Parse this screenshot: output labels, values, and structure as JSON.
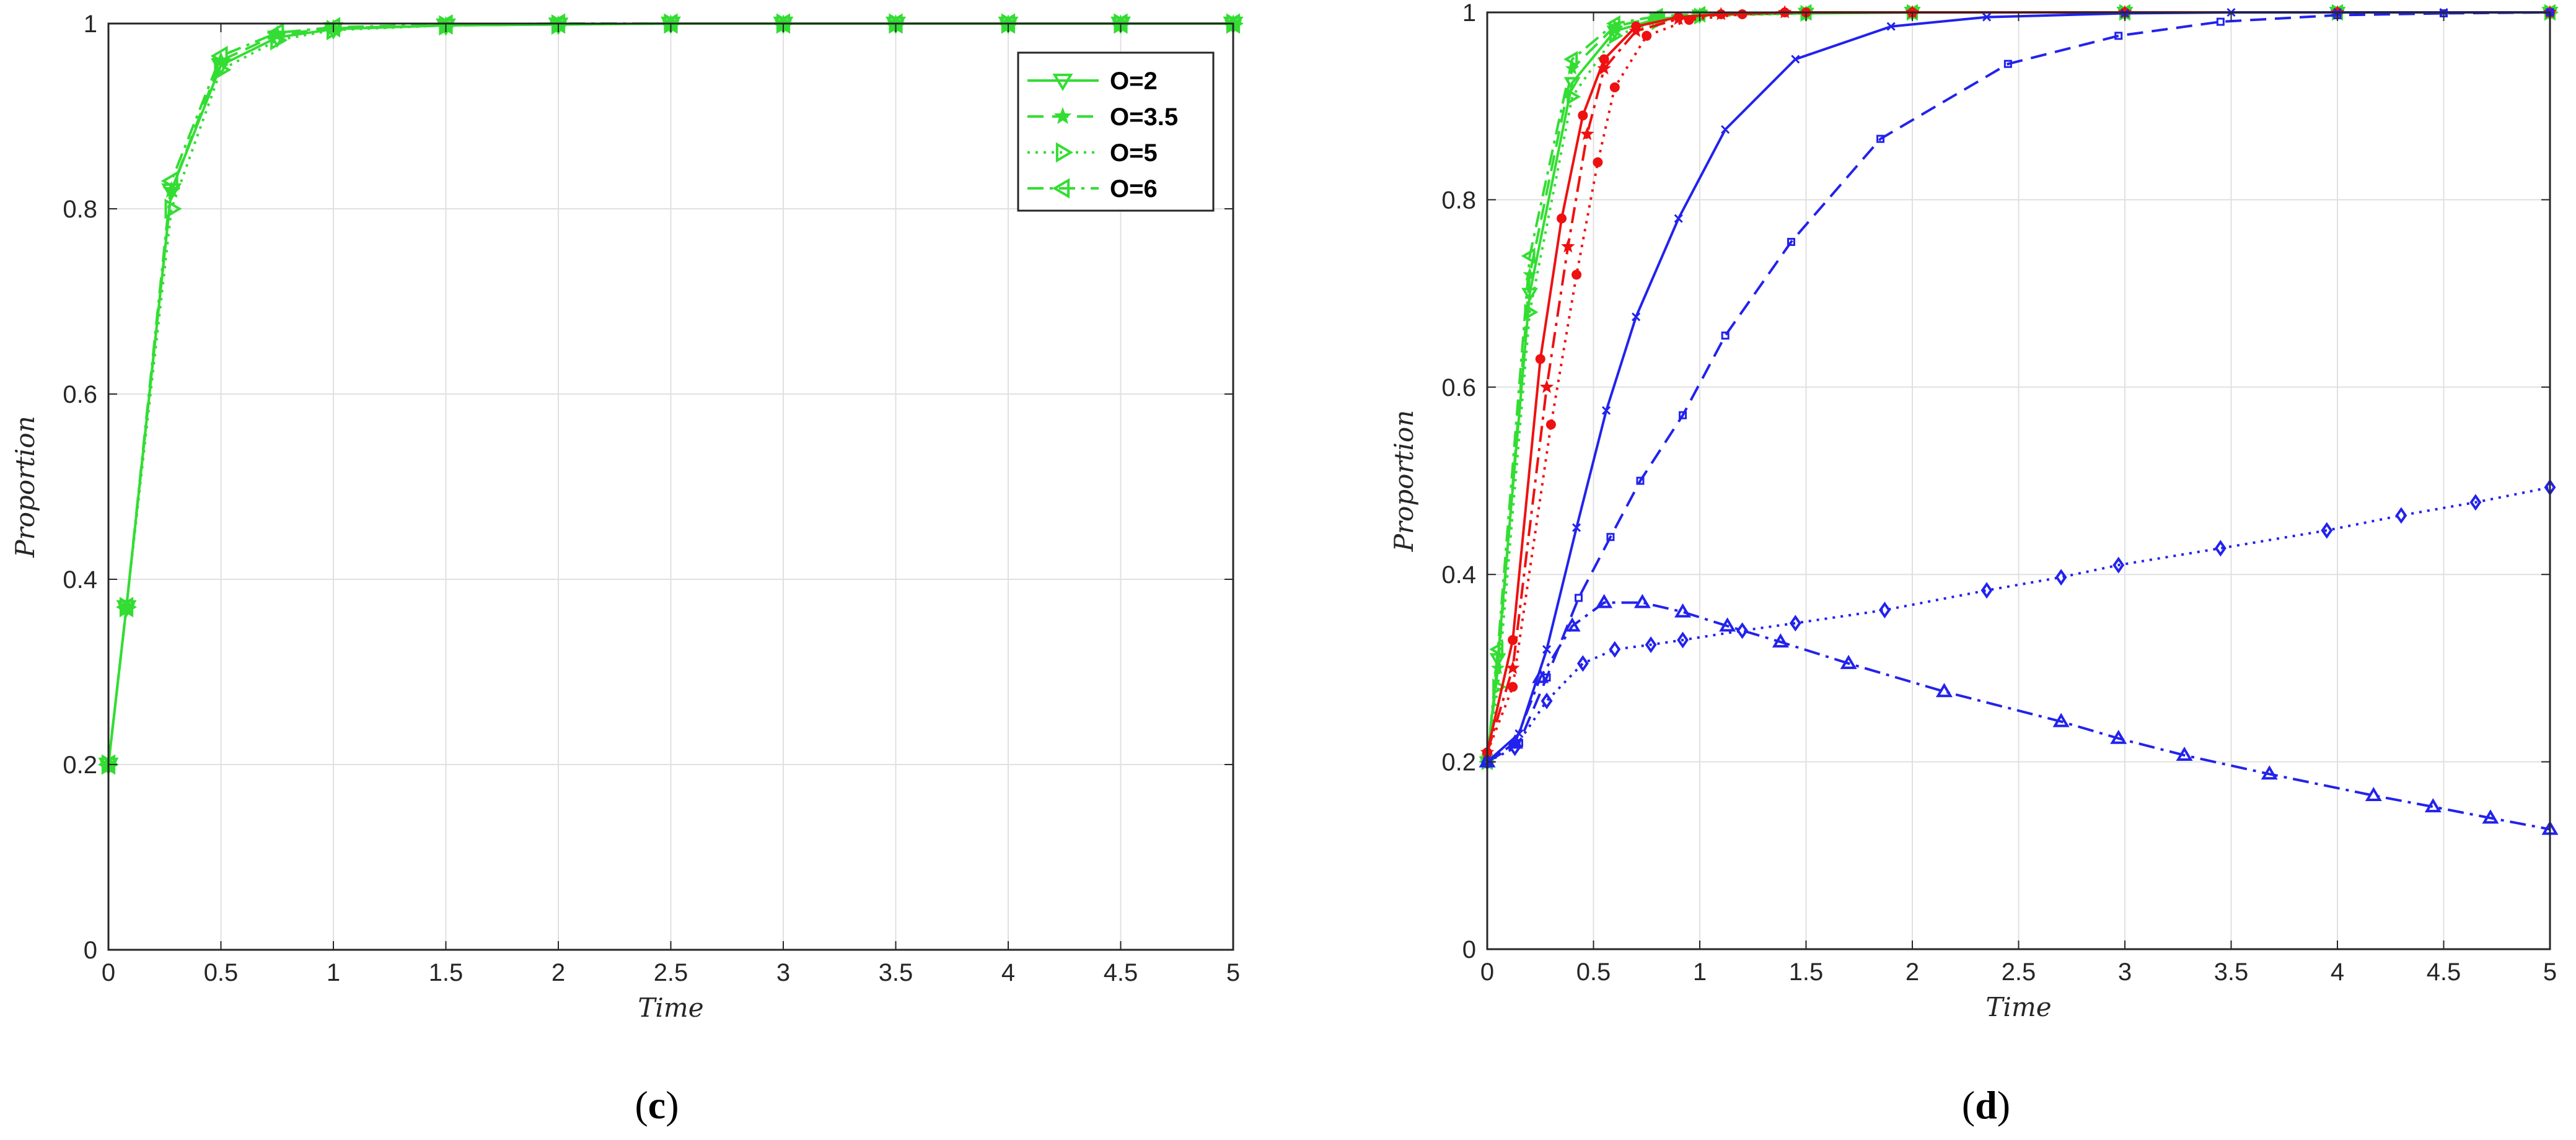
{
  "panels": [
    {
      "label_open": "(",
      "label_letter": "c",
      "label_close": ")"
    },
    {
      "label_open": "(",
      "label_letter": "d",
      "label_close": ")"
    }
  ],
  "colors": {
    "green": "#33dd33",
    "red": "#ee1111",
    "blue": "#2222ee",
    "grid": "#e0e0e0",
    "axis": "#262626"
  },
  "chart_data": [
    {
      "type": "line",
      "title": "",
      "xlabel": "Time",
      "ylabel": "Proportion",
      "xlim": [
        0,
        5
      ],
      "ylim": [
        0,
        1
      ],
      "xticks": [
        "0",
        "0.5",
        "1",
        "1.5",
        "2",
        "2.5",
        "3",
        "3.5",
        "4",
        "4.5",
        "5"
      ],
      "yticks": [
        "0",
        "0.2",
        "0.4",
        "0.6",
        "0.8",
        "1"
      ],
      "grid": true,
      "legend_position": "top-right",
      "series": [
        {
          "name": "O=2",
          "color": "#33dd33",
          "dash": "solid",
          "marker": "triangle-down",
          "x": [
            0,
            0.08,
            0.28,
            0.5,
            0.75,
            1.0,
            1.5,
            2.0,
            2.5,
            3.0,
            3.5,
            4.0,
            4.5,
            5.0
          ],
          "y": [
            0.2,
            0.37,
            0.82,
            0.955,
            0.985,
            0.994,
            0.998,
            0.999,
            1.0,
            1.0,
            1.0,
            1.0,
            1.0,
            1.0
          ]
        },
        {
          "name": "O=3.5",
          "color": "#33dd33",
          "dash": "dashed",
          "marker": "star",
          "x": [
            0,
            0.08,
            0.28,
            0.5,
            0.75,
            1.0,
            1.5,
            2.0,
            2.5,
            3.0,
            3.5,
            4.0,
            4.5,
            5.0
          ],
          "y": [
            0.2,
            0.37,
            0.82,
            0.96,
            0.988,
            0.995,
            0.998,
            0.999,
            1.0,
            1.0,
            1.0,
            1.0,
            1.0,
            1.0
          ]
        },
        {
          "name": "O=5",
          "color": "#33dd33",
          "dash": "dotted",
          "marker": "triangle-right",
          "x": [
            0,
            0.08,
            0.28,
            0.5,
            0.75,
            1.0,
            1.5,
            2.0,
            2.5,
            3.0,
            3.5,
            4.0,
            4.5,
            5.0
          ],
          "y": [
            0.2,
            0.37,
            0.8,
            0.95,
            0.982,
            0.993,
            0.998,
            0.999,
            1.0,
            1.0,
            1.0,
            1.0,
            1.0,
            1.0
          ]
        },
        {
          "name": "O=6",
          "color": "#33dd33",
          "dash": "dashdot",
          "marker": "triangle-left",
          "x": [
            0,
            0.08,
            0.28,
            0.5,
            0.75,
            1.0,
            1.5,
            2.0,
            2.5,
            3.0,
            3.5,
            4.0,
            4.5,
            5.0
          ],
          "y": [
            0.2,
            0.37,
            0.83,
            0.965,
            0.99,
            0.996,
            0.999,
            1.0,
            1.0,
            1.0,
            1.0,
            1.0,
            1.0,
            1.0
          ]
        }
      ]
    },
    {
      "type": "line",
      "title": "",
      "xlabel": "Time",
      "ylabel": "Proportion",
      "xlim": [
        0,
        5
      ],
      "ylim": [
        0,
        1
      ],
      "xticks": [
        "0",
        "0.5",
        "1",
        "1.5",
        "2",
        "2.5",
        "3",
        "3.5",
        "4",
        "4.5",
        "5"
      ],
      "yticks": [
        "0",
        "0.2",
        "0.4",
        "0.6",
        "0.8",
        "1"
      ],
      "grid": true,
      "series": [
        {
          "color": "#33dd33",
          "dash": "solid",
          "marker": "triangle-down",
          "x": [
            0,
            0.05,
            0.2,
            0.4,
            0.6,
            0.8,
            1.0,
            1.5,
            2.0,
            3.0,
            4.0,
            5.0
          ],
          "y": [
            0.2,
            0.31,
            0.7,
            0.925,
            0.98,
            0.993,
            0.997,
            0.999,
            1.0,
            1.0,
            1.0,
            1.0
          ]
        },
        {
          "color": "#33dd33",
          "dash": "dashed",
          "marker": "star",
          "x": [
            0,
            0.05,
            0.2,
            0.4,
            0.6,
            0.8,
            1.0,
            1.5,
            2.0,
            3.0,
            4.0,
            5.0
          ],
          "y": [
            0.2,
            0.3,
            0.72,
            0.94,
            0.985,
            0.995,
            0.998,
            1.0,
            1.0,
            1.0,
            1.0,
            1.0
          ]
        },
        {
          "color": "#33dd33",
          "dash": "dotted",
          "marker": "triangle-right",
          "x": [
            0,
            0.05,
            0.2,
            0.4,
            0.6,
            0.8,
            1.0,
            1.5,
            2.0,
            3.0,
            4.0,
            5.0
          ],
          "y": [
            0.2,
            0.28,
            0.68,
            0.91,
            0.975,
            0.99,
            0.996,
            0.999,
            1.0,
            1.0,
            1.0,
            1.0
          ]
        },
        {
          "color": "#33dd33",
          "dash": "dashdot",
          "marker": "triangle-left",
          "x": [
            0,
            0.05,
            0.2,
            0.4,
            0.6,
            0.8,
            1.0,
            1.5,
            2.0,
            3.0,
            4.0,
            5.0
          ],
          "y": [
            0.2,
            0.32,
            0.74,
            0.95,
            0.988,
            0.996,
            0.998,
            1.0,
            1.0,
            1.0,
            1.0,
            1.0
          ]
        },
        {
          "color": "#ee1111",
          "dash": "solid",
          "marker": "circle",
          "x": [
            0,
            0.12,
            0.25,
            0.35,
            0.45,
            0.55,
            0.7,
            0.9,
            1.1,
            1.4,
            2.0,
            3.0,
            4.0,
            5.0
          ],
          "y": [
            0.21,
            0.33,
            0.63,
            0.78,
            0.89,
            0.95,
            0.985,
            0.995,
            0.998,
            1.0,
            1.0,
            1.0,
            1.0,
            1.0
          ]
        },
        {
          "color": "#ee1111",
          "dash": "dashdot",
          "marker": "star",
          "x": [
            0,
            0.12,
            0.28,
            0.38,
            0.47,
            0.55,
            0.7,
            0.9,
            1.1,
            1.4,
            2.0,
            3.0,
            4.0,
            5.0
          ],
          "y": [
            0.21,
            0.3,
            0.6,
            0.75,
            0.87,
            0.94,
            0.98,
            0.993,
            0.998,
            1.0,
            1.0,
            1.0,
            1.0,
            1.0
          ]
        },
        {
          "color": "#ee1111",
          "dash": "dotted",
          "marker": "circle",
          "x": [
            0,
            0.12,
            0.3,
            0.42,
            0.52,
            0.6,
            0.75,
            0.95,
            1.2,
            1.5,
            2.0,
            3.0,
            4.0,
            5.0
          ],
          "y": [
            0.21,
            0.28,
            0.56,
            0.72,
            0.84,
            0.92,
            0.975,
            0.992,
            0.998,
            1.0,
            1.0,
            1.0,
            1.0,
            1.0
          ]
        },
        {
          "color": "#2222ee",
          "dash": "solid",
          "marker": "x",
          "x": [
            0,
            0.15,
            0.28,
            0.42,
            0.56,
            0.7,
            0.9,
            1.12,
            1.45,
            1.9,
            2.35,
            3.0,
            3.5,
            4.0,
            4.5,
            5.0
          ],
          "y": [
            0.2,
            0.23,
            0.32,
            0.45,
            0.575,
            0.675,
            0.78,
            0.875,
            0.95,
            0.985,
            0.995,
            0.999,
            1.0,
            1.0,
            1.0,
            1.0
          ]
        },
        {
          "color": "#2222ee",
          "dash": "dashed",
          "marker": "square",
          "x": [
            0,
            0.15,
            0.28,
            0.43,
            0.58,
            0.72,
            0.92,
            1.12,
            1.43,
            1.85,
            2.45,
            2.97,
            3.45,
            4.0,
            4.5,
            5.0
          ],
          "y": [
            0.2,
            0.22,
            0.29,
            0.375,
            0.44,
            0.5,
            0.57,
            0.655,
            0.755,
            0.865,
            0.945,
            0.975,
            0.99,
            0.997,
            0.999,
            1.0
          ]
        },
        {
          "color": "#2222ee",
          "dash": "dotted",
          "marker": "diamond",
          "x": [
            0,
            0.13,
            0.28,
            0.45,
            0.6,
            0.77,
            0.92,
            1.2,
            1.45,
            1.87,
            2.35,
            2.7,
            2.97,
            3.45,
            3.95,
            4.3,
            4.65,
            5.0
          ],
          "y": [
            0.2,
            0.215,
            0.265,
            0.305,
            0.32,
            0.325,
            0.33,
            0.34,
            0.348,
            0.362,
            0.383,
            0.397,
            0.41,
            0.428,
            0.447,
            0.463,
            0.477,
            0.493
          ]
        },
        {
          "color": "#2222ee",
          "dash": "dashdot",
          "marker": "triangle-up",
          "x": [
            0,
            0.13,
            0.25,
            0.4,
            0.55,
            0.73,
            0.92,
            1.13,
            1.38,
            1.7,
            2.15,
            2.7,
            2.97,
            3.28,
            3.68,
            4.17,
            4.45,
            4.72,
            5.0
          ],
          "y": [
            0.2,
            0.22,
            0.29,
            0.345,
            0.37,
            0.37,
            0.36,
            0.345,
            0.328,
            0.305,
            0.275,
            0.243,
            0.225,
            0.207,
            0.187,
            0.164,
            0.152,
            0.14,
            0.128
          ]
        }
      ]
    }
  ]
}
